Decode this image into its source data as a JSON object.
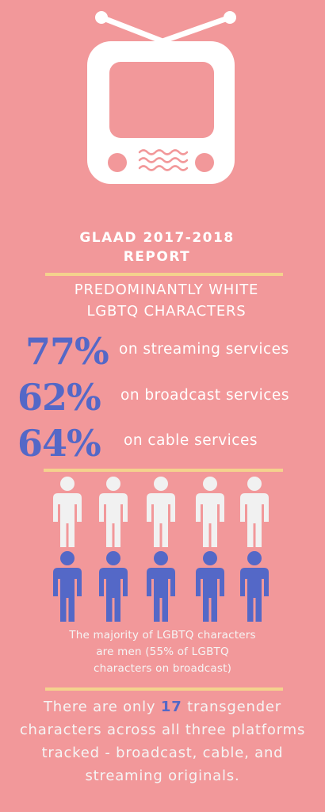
{
  "header": {
    "title_line1": "GLAAD 2017-2018",
    "title_line2": "REPORT",
    "icon": "tv-icon"
  },
  "section": {
    "subtitle_line1": "PREDOMINANTLY WHITE",
    "subtitle_line2": "LGBTQ CHARACTERS"
  },
  "stats": [
    {
      "value": "77%",
      "label": "on streaming services"
    },
    {
      "value": "62%",
      "label": "on broadcast services"
    },
    {
      "value": "64%",
      "label": "on cable services"
    }
  ],
  "people": {
    "icon": "person-icon",
    "rows": [
      {
        "color": "#f1f1f1",
        "count": 5
      },
      {
        "color": "#5468c7",
        "count": 5
      }
    ]
  },
  "note": {
    "line1": "The majority of LGBTQ characters",
    "line2": "are men (55% of LGBTQ",
    "line3": "characters on broadcast)"
  },
  "trans": {
    "before": "There are only",
    "count": "17",
    "after": "transgender characters across all three platforms tracked - broadcast, cable, and streaming originals."
  },
  "colors": {
    "background": "#f2989a",
    "accent": "#5468c7",
    "rule": "#f4d28d",
    "white": "#ffffff"
  }
}
